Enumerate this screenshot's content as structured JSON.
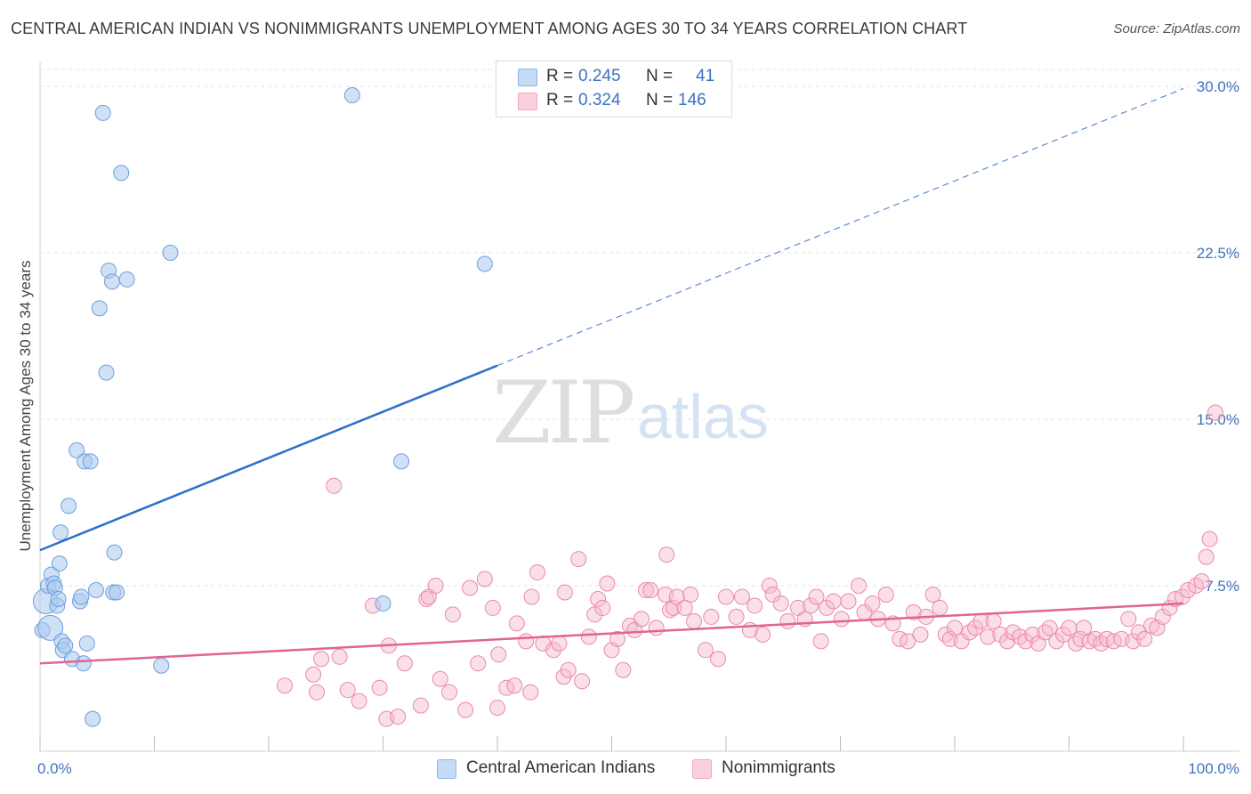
{
  "header": {
    "title": "CENTRAL AMERICAN INDIAN VS NONIMMIGRANTS UNEMPLOYMENT AMONG AGES 30 TO 34 YEARS CORRELATION CHART",
    "source": "Source: ZipAtlas.com"
  },
  "watermark": {
    "zip": "ZIP",
    "atlas": "atlas"
  },
  "legend": {
    "rows": [
      {
        "r_label": "R =",
        "r_value": "0.245",
        "n_label": "N =",
        "n_value": "41",
        "color": "#a9c8ee"
      },
      {
        "r_label": "R =",
        "r_value": "0.324",
        "n_label": "N =",
        "n_value": "146",
        "color": "#f7b8cc"
      }
    ]
  },
  "bottom_legend": [
    {
      "label": "Central American Indians",
      "color": "#a9c8ee"
    },
    {
      "label": "Nonimmigrants",
      "color": "#f7b8cc"
    }
  ],
  "chart_data": {
    "type": "scatter",
    "title": "CENTRAL AMERICAN INDIAN VS NONIMMIGRANTS UNEMPLOYMENT AMONG AGES 30 TO 34 YEARS CORRELATION CHART",
    "xlabel": "",
    "ylabel": "Unemployment Among Ages 30 to 34 years",
    "xlim": [
      0,
      100
    ],
    "ylim": [
      0,
      30
    ],
    "x_tick_labels": [
      "0.0%",
      "100.0%"
    ],
    "y_ticks": [
      7.5,
      15.0,
      22.5,
      30.0
    ],
    "y_tick_labels": [
      "7.5%",
      "15.0%",
      "22.5%",
      "30.0%"
    ],
    "grid": true,
    "legend_position": "top-center",
    "series": [
      {
        "name": "Central American Indians",
        "color": "#a9c8ee",
        "stroke": "#6c9fdc",
        "trend": {
          "x0": 0,
          "y0": 9.1,
          "x1": 100,
          "y1": 29.9,
          "solid_until": 40
        },
        "trend_color": "#2f6fcb",
        "points": [
          [
            0.2,
            5.5
          ],
          [
            0.5,
            6.8
          ],
          [
            0.7,
            7.5
          ],
          [
            0.9,
            5.6
          ],
          [
            1.0,
            8.0
          ],
          [
            1.2,
            7.6
          ],
          [
            1.3,
            7.4
          ],
          [
            1.5,
            6.6
          ],
          [
            1.6,
            6.9
          ],
          [
            1.7,
            8.5
          ],
          [
            1.8,
            9.9
          ],
          [
            1.9,
            5.0
          ],
          [
            2.0,
            4.6
          ],
          [
            2.2,
            4.8
          ],
          [
            2.5,
            11.1
          ],
          [
            2.8,
            4.2
          ],
          [
            3.2,
            13.6
          ],
          [
            3.5,
            6.8
          ],
          [
            3.6,
            7.0
          ],
          [
            3.8,
            4.0
          ],
          [
            3.9,
            13.1
          ],
          [
            4.1,
            4.9
          ],
          [
            4.4,
            13.1
          ],
          [
            4.6,
            1.5
          ],
          [
            4.9,
            7.3
          ],
          [
            5.2,
            20.0
          ],
          [
            5.5,
            28.8
          ],
          [
            5.8,
            17.1
          ],
          [
            6.0,
            21.7
          ],
          [
            6.3,
            21.2
          ],
          [
            6.4,
            7.2
          ],
          [
            6.5,
            9.0
          ],
          [
            6.7,
            7.2
          ],
          [
            7.1,
            26.1
          ],
          [
            7.6,
            21.3
          ],
          [
            10.6,
            3.9
          ],
          [
            11.4,
            22.5
          ],
          [
            27.3,
            29.6
          ],
          [
            30.0,
            6.7
          ],
          [
            31.6,
            13.1
          ],
          [
            38.9,
            22.0
          ]
        ]
      },
      {
        "name": "Nonimmigrants",
        "color": "#f7b8cc",
        "stroke": "#e98aa8",
        "trend": {
          "x0": 0,
          "y0": 4.0,
          "x1": 100,
          "y1": 6.7
        },
        "trend_color": "#e06592",
        "points": [
          [
            21.4,
            3.0
          ],
          [
            23.9,
            3.5
          ],
          [
            24.2,
            2.7
          ],
          [
            24.6,
            4.2
          ],
          [
            25.7,
            12.0
          ],
          [
            26.2,
            4.3
          ],
          [
            26.9,
            2.8
          ],
          [
            27.9,
            2.3
          ],
          [
            29.1,
            6.6
          ],
          [
            29.7,
            2.9
          ],
          [
            30.3,
            1.5
          ],
          [
            30.5,
            4.8
          ],
          [
            31.3,
            1.6
          ],
          [
            31.9,
            4.0
          ],
          [
            33.3,
            2.1
          ],
          [
            33.8,
            6.9
          ],
          [
            34.0,
            7.0
          ],
          [
            34.6,
            7.5
          ],
          [
            35.0,
            3.3
          ],
          [
            35.8,
            2.7
          ],
          [
            36.1,
            6.2
          ],
          [
            37.2,
            1.9
          ],
          [
            37.6,
            7.4
          ],
          [
            38.3,
            4.0
          ],
          [
            38.9,
            7.8
          ],
          [
            39.6,
            6.5
          ],
          [
            40.0,
            2.0
          ],
          [
            40.1,
            4.4
          ],
          [
            40.8,
            2.9
          ],
          [
            41.5,
            3.0
          ],
          [
            41.7,
            5.8
          ],
          [
            42.5,
            5.0
          ],
          [
            42.9,
            2.7
          ],
          [
            43.0,
            7.0
          ],
          [
            43.5,
            8.1
          ],
          [
            44.0,
            4.9
          ],
          [
            44.9,
            4.6
          ],
          [
            45.4,
            4.9
          ],
          [
            45.8,
            3.4
          ],
          [
            45.9,
            7.2
          ],
          [
            46.2,
            3.7
          ],
          [
            47.1,
            8.7
          ],
          [
            47.4,
            3.2
          ],
          [
            48.0,
            5.2
          ],
          [
            48.5,
            6.2
          ],
          [
            48.8,
            6.9
          ],
          [
            49.2,
            6.5
          ],
          [
            49.6,
            7.6
          ],
          [
            50.0,
            4.6
          ],
          [
            50.5,
            5.1
          ],
          [
            51.0,
            3.7
          ],
          [
            51.6,
            5.7
          ],
          [
            52.0,
            5.5
          ],
          [
            52.6,
            6.0
          ],
          [
            53.0,
            7.3
          ],
          [
            53.4,
            7.3
          ],
          [
            53.9,
            5.6
          ],
          [
            54.7,
            7.1
          ],
          [
            54.8,
            8.9
          ],
          [
            55.1,
            6.4
          ],
          [
            55.4,
            6.5
          ],
          [
            55.7,
            7.0
          ],
          [
            56.4,
            6.5
          ],
          [
            56.9,
            7.1
          ],
          [
            57.2,
            5.9
          ],
          [
            58.2,
            4.6
          ],
          [
            58.7,
            6.1
          ],
          [
            59.3,
            4.2
          ],
          [
            60.0,
            7.0
          ],
          [
            60.9,
            6.1
          ],
          [
            61.4,
            7.0
          ],
          [
            62.1,
            5.5
          ],
          [
            62.5,
            6.6
          ],
          [
            63.2,
            5.3
          ],
          [
            63.8,
            7.5
          ],
          [
            64.1,
            7.1
          ],
          [
            64.8,
            6.7
          ],
          [
            65.4,
            5.9
          ],
          [
            66.3,
            6.5
          ],
          [
            66.9,
            6.0
          ],
          [
            67.4,
            6.6
          ],
          [
            67.9,
            7.0
          ],
          [
            68.3,
            5.0
          ],
          [
            68.8,
            6.5
          ],
          [
            69.4,
            6.8
          ],
          [
            70.1,
            6.0
          ],
          [
            70.7,
            6.8
          ],
          [
            71.6,
            7.5
          ],
          [
            72.1,
            6.3
          ],
          [
            72.8,
            6.7
          ],
          [
            73.3,
            6.0
          ],
          [
            74.0,
            7.1
          ],
          [
            74.6,
            5.8
          ],
          [
            75.2,
            5.1
          ],
          [
            75.9,
            5.0
          ],
          [
            76.4,
            6.3
          ],
          [
            77.0,
            5.3
          ],
          [
            77.5,
            6.1
          ],
          [
            78.1,
            7.1
          ],
          [
            78.7,
            6.5
          ],
          [
            79.2,
            5.3
          ],
          [
            79.6,
            5.1
          ],
          [
            80.0,
            5.6
          ],
          [
            80.6,
            5.0
          ],
          [
            81.3,
            5.4
          ],
          [
            81.8,
            5.6
          ],
          [
            82.3,
            5.9
          ],
          [
            82.9,
            5.2
          ],
          [
            83.4,
            5.9
          ],
          [
            84.0,
            5.3
          ],
          [
            84.6,
            5.0
          ],
          [
            85.1,
            5.4
          ],
          [
            85.7,
            5.2
          ],
          [
            86.2,
            5.0
          ],
          [
            86.8,
            5.3
          ],
          [
            87.3,
            4.9
          ],
          [
            87.9,
            5.4
          ],
          [
            88.3,
            5.6
          ],
          [
            88.9,
            5.0
          ],
          [
            89.5,
            5.3
          ],
          [
            90.0,
            5.6
          ],
          [
            90.6,
            4.9
          ],
          [
            91.0,
            5.1
          ],
          [
            91.3,
            5.6
          ],
          [
            91.8,
            5.0
          ],
          [
            92.3,
            5.1
          ],
          [
            92.8,
            4.9
          ],
          [
            93.3,
            5.1
          ],
          [
            93.9,
            5.0
          ],
          [
            94.6,
            5.1
          ],
          [
            95.2,
            6.0
          ],
          [
            95.6,
            5.0
          ],
          [
            96.1,
            5.4
          ],
          [
            96.6,
            5.1
          ],
          [
            97.2,
            5.7
          ],
          [
            97.7,
            5.6
          ],
          [
            98.2,
            6.1
          ],
          [
            98.8,
            6.5
          ],
          [
            99.3,
            6.9
          ],
          [
            99.9,
            7.0
          ],
          [
            100.4,
            7.3
          ],
          [
            101.1,
            7.5
          ],
          [
            101.6,
            7.7
          ],
          [
            102.0,
            8.8
          ],
          [
            102.3,
            9.6
          ],
          [
            102.8,
            15.3
          ]
        ]
      }
    ]
  }
}
